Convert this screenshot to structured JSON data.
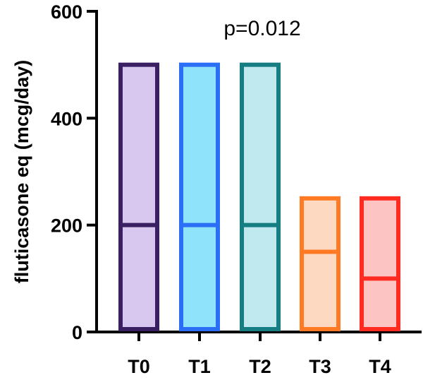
{
  "chart_data": {
    "type": "bar",
    "subtype": "floating-bar-min-max-with-median",
    "title": "",
    "xlabel": "",
    "ylabel": "fluticasone eq (mcg/day)",
    "ylim": [
      0,
      600
    ],
    "yticks": [
      0,
      200,
      400,
      600
    ],
    "annotation": "p=0.012",
    "grid": false,
    "categories": [
      "T0",
      "T1",
      "T2",
      "T3",
      "T4"
    ],
    "series": [
      {
        "values_min": [
          0,
          0,
          0,
          0,
          0
        ],
        "values_max": [
          500,
          500,
          500,
          250,
          250
        ],
        "values_median": [
          200,
          200,
          200,
          150,
          100
        ]
      }
    ],
    "colors": {
      "fill": [
        "#d8c7ee",
        "#8fe3fb",
        "#bfe9ee",
        "#fdd9c2",
        "#fdc4c4"
      ],
      "stroke": [
        "#3a1f63",
        "#2a6ff5",
        "#167e83",
        "#ff7a22",
        "#ff2b20"
      ]
    }
  }
}
